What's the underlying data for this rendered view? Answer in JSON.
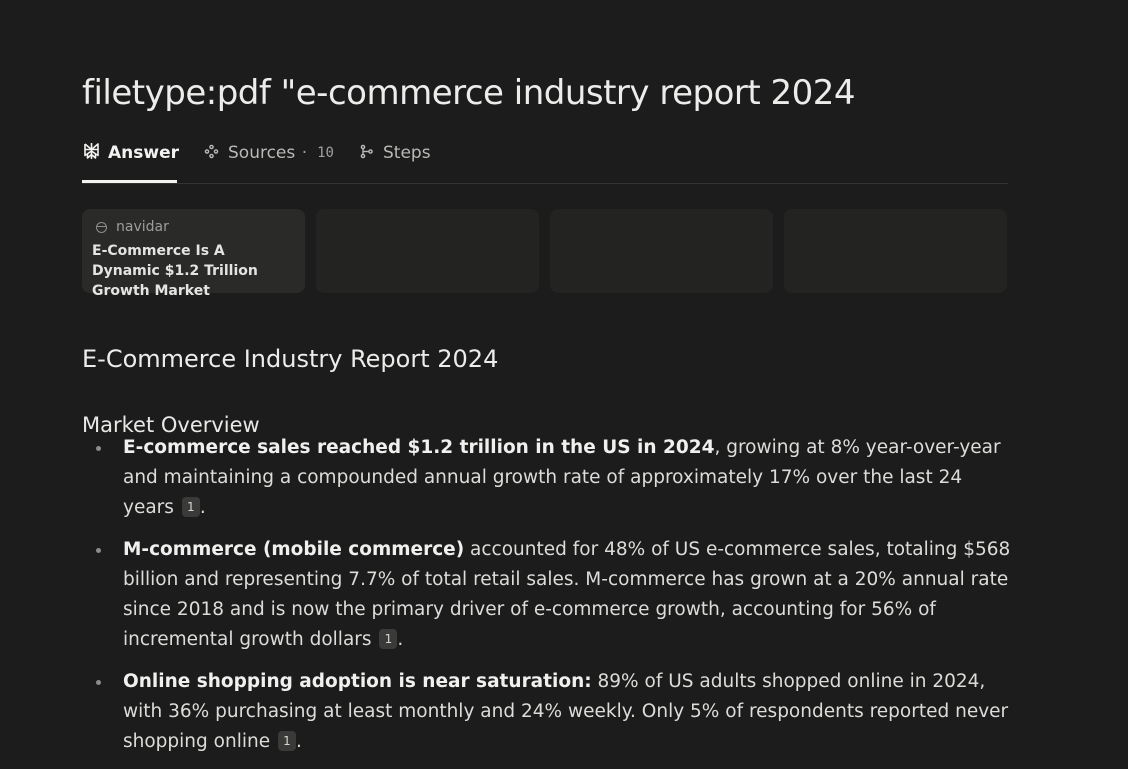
{
  "query": {
    "title": "filetype:pdf \"e-commerce industry report 2024"
  },
  "tabs": {
    "answer": {
      "label": "Answer",
      "icon": "perplexity-logo-icon"
    },
    "sources": {
      "label": "Sources",
      "count": "· 10",
      "icon": "sources-icon"
    },
    "steps": {
      "label": "Steps",
      "icon": "steps-icon"
    }
  },
  "source_cards": [
    {
      "domain": "navidar",
      "title": "E-Commerce Is A Dynamic $1.2 Trillion Growth Market"
    }
  ],
  "answer": {
    "heading": "E-Commerce Industry Report 2024",
    "section": "Market Overview",
    "bullets": [
      {
        "bold": "E-commerce sales reached $1.2 trillion in the US in 2024",
        "text": ", growing at 8% year-over-year and maintaining a compounded annual growth rate of approximately 17% over the last 24 years",
        "citation": "1",
        "end": "."
      },
      {
        "bold": "M-commerce (mobile commerce)",
        "text": " accounted for 48% of US e-commerce sales, totaling $568 billion and representing 7.7% of total retail sales. M-commerce has grown at a 20% annual rate since 2018 and is now the primary driver of e-commerce growth, accounting for 56% of incremental growth dollars",
        "citation": "1",
        "end": "."
      },
      {
        "bold": "Online shopping adoption is near saturation:",
        "text": " 89% of US adults shopped online in 2024, with 36% purchasing at least monthly and 24% weekly. Only 5% of respondents reported never shopping online",
        "citation": "1",
        "end": "."
      }
    ]
  },
  "colors": {
    "background": "#1c1c1c",
    "text": "#e8e8e6",
    "muted": "#9d9d99",
    "card": "#2a2a29"
  }
}
